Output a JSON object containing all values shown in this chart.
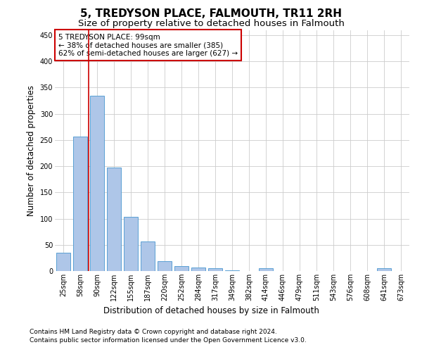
{
  "title": "5, TREDYSON PLACE, FALMOUTH, TR11 2RH",
  "subtitle": "Size of property relative to detached houses in Falmouth",
  "xlabel": "Distribution of detached houses by size in Falmouth",
  "ylabel": "Number of detached properties",
  "footer_line1": "Contains HM Land Registry data © Crown copyright and database right 2024.",
  "footer_line2": "Contains public sector information licensed under the Open Government Licence v3.0.",
  "bar_labels": [
    "25sqm",
    "58sqm",
    "90sqm",
    "122sqm",
    "155sqm",
    "187sqm",
    "220sqm",
    "252sqm",
    "284sqm",
    "317sqm",
    "349sqm",
    "382sqm",
    "414sqm",
    "446sqm",
    "479sqm",
    "511sqm",
    "543sqm",
    "576sqm",
    "608sqm",
    "641sqm",
    "673sqm"
  ],
  "bar_values": [
    35,
    256,
    335,
    197,
    104,
    57,
    19,
    10,
    7,
    5,
    2,
    0,
    5,
    0,
    0,
    0,
    0,
    0,
    0,
    5,
    0
  ],
  "bar_color": "#aec6e8",
  "bar_edge_color": "#5a9fd4",
  "grid_color": "#cccccc",
  "vline_color": "#cc0000",
  "annotation_text": "5 TREDYSON PLACE: 99sqm\n← 38% of detached houses are smaller (385)\n62% of semi-detached houses are larger (627) →",
  "annotation_box_color": "#cc0000",
  "ylim": [
    0,
    460
  ],
  "yticks": [
    0,
    50,
    100,
    150,
    200,
    250,
    300,
    350,
    400,
    450
  ],
  "background_color": "#ffffff",
  "title_fontsize": 11,
  "subtitle_fontsize": 9.5,
  "axis_label_fontsize": 8.5,
  "tick_fontsize": 7,
  "annotation_fontsize": 7.5,
  "footer_fontsize": 6.5
}
